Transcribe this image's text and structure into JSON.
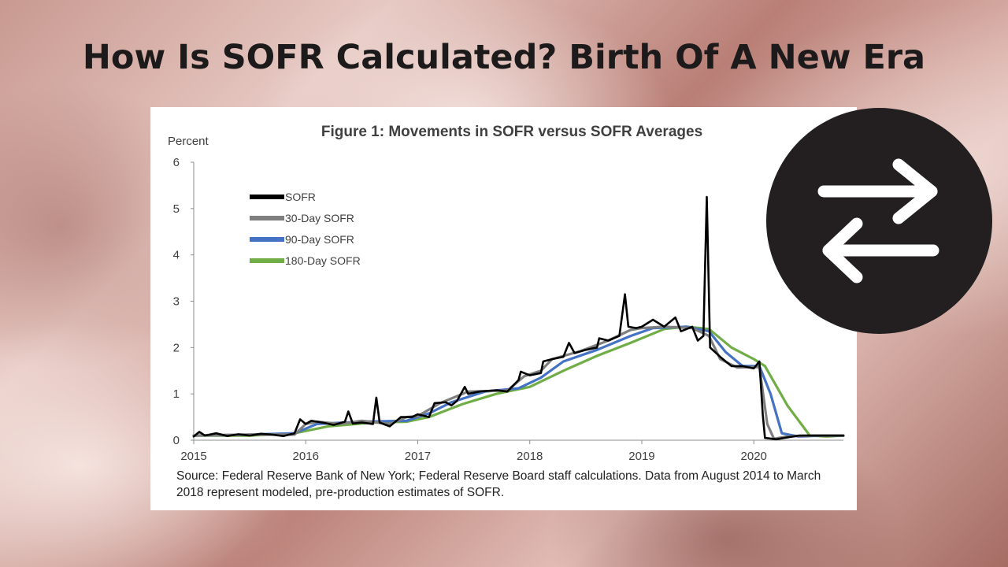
{
  "page": {
    "title": "How Is SOFR Calculated? Birth Of A New Era",
    "icon": "swap-arrows-icon",
    "colors": {
      "title": "#1d1a1b",
      "badge": "#231f20",
      "arrows": "#ffffff"
    }
  },
  "chart_data": {
    "type": "line",
    "title": "Figure 1: Movements in SOFR versus SOFR Averages",
    "ylabel": "Percent",
    "xlabel": "",
    "xlim": [
      2015,
      2020.8
    ],
    "ylim": [
      0,
      6
    ],
    "x_ticks": [
      2015,
      2016,
      2017,
      2018,
      2019,
      2020
    ],
    "y_ticks": [
      0,
      1,
      2,
      3,
      4,
      5,
      6
    ],
    "grid": false,
    "legend_position": "top-left",
    "source": "Source: Federal Reserve Bank of New York; Federal Reserve Board staff calculations. Data from August 2014 to March 2018 represent modeled, pre-production estimates of  SOFR.",
    "series": [
      {
        "name": "SOFR",
        "color": "#000000",
        "points": [
          [
            2015.0,
            0.08
          ],
          [
            2015.05,
            0.18
          ],
          [
            2015.1,
            0.1
          ],
          [
            2015.2,
            0.15
          ],
          [
            2015.3,
            0.09
          ],
          [
            2015.4,
            0.13
          ],
          [
            2015.5,
            0.1
          ],
          [
            2015.6,
            0.14
          ],
          [
            2015.7,
            0.12
          ],
          [
            2015.8,
            0.09
          ],
          [
            2015.9,
            0.15
          ],
          [
            2015.95,
            0.45
          ],
          [
            2016.0,
            0.35
          ],
          [
            2016.05,
            0.42
          ],
          [
            2016.15,
            0.38
          ],
          [
            2016.25,
            0.33
          ],
          [
            2016.35,
            0.4
          ],
          [
            2016.38,
            0.62
          ],
          [
            2016.42,
            0.36
          ],
          [
            2016.5,
            0.38
          ],
          [
            2016.6,
            0.35
          ],
          [
            2016.63,
            0.92
          ],
          [
            2016.66,
            0.38
          ],
          [
            2016.75,
            0.3
          ],
          [
            2016.85,
            0.5
          ],
          [
            2016.95,
            0.5
          ],
          [
            2017.0,
            0.56
          ],
          [
            2017.1,
            0.5
          ],
          [
            2017.15,
            0.8
          ],
          [
            2017.25,
            0.82
          ],
          [
            2017.3,
            0.75
          ],
          [
            2017.35,
            0.85
          ],
          [
            2017.42,
            1.15
          ],
          [
            2017.45,
            1.0
          ],
          [
            2017.55,
            1.05
          ],
          [
            2017.7,
            1.08
          ],
          [
            2017.8,
            1.05
          ],
          [
            2017.9,
            1.3
          ],
          [
            2017.92,
            1.48
          ],
          [
            2018.0,
            1.4
          ],
          [
            2018.1,
            1.45
          ],
          [
            2018.12,
            1.7
          ],
          [
            2018.2,
            1.75
          ],
          [
            2018.3,
            1.8
          ],
          [
            2018.35,
            2.1
          ],
          [
            2018.4,
            1.88
          ],
          [
            2018.5,
            1.95
          ],
          [
            2018.6,
            2.0
          ],
          [
            2018.62,
            2.2
          ],
          [
            2018.7,
            2.15
          ],
          [
            2018.8,
            2.25
          ],
          [
            2018.85,
            3.15
          ],
          [
            2018.88,
            2.45
          ],
          [
            2018.95,
            2.42
          ],
          [
            2019.0,
            2.45
          ],
          [
            2019.1,
            2.6
          ],
          [
            2019.2,
            2.45
          ],
          [
            2019.3,
            2.65
          ],
          [
            2019.35,
            2.35
          ],
          [
            2019.45,
            2.45
          ],
          [
            2019.5,
            2.15
          ],
          [
            2019.55,
            2.25
          ],
          [
            2019.58,
            5.25
          ],
          [
            2019.61,
            2.0
          ],
          [
            2019.7,
            1.8
          ],
          [
            2019.8,
            1.6
          ],
          [
            2019.9,
            1.6
          ],
          [
            2020.0,
            1.55
          ],
          [
            2020.05,
            1.7
          ],
          [
            2020.08,
            0.55
          ],
          [
            2020.1,
            0.05
          ],
          [
            2020.2,
            0.02
          ],
          [
            2020.4,
            0.1
          ],
          [
            2020.6,
            0.1
          ],
          [
            2020.8,
            0.1
          ]
        ]
      },
      {
        "name": "30-Day SOFR",
        "color": "#7f7f7f",
        "points": [
          [
            2015.0,
            0.1
          ],
          [
            2015.5,
            0.12
          ],
          [
            2015.9,
            0.12
          ],
          [
            2016.0,
            0.35
          ],
          [
            2016.1,
            0.4
          ],
          [
            2016.3,
            0.35
          ],
          [
            2016.5,
            0.42
          ],
          [
            2016.75,
            0.35
          ],
          [
            2016.9,
            0.5
          ],
          [
            2017.0,
            0.52
          ],
          [
            2017.2,
            0.8
          ],
          [
            2017.45,
            1.05
          ],
          [
            2017.8,
            1.07
          ],
          [
            2017.95,
            1.38
          ],
          [
            2018.1,
            1.5
          ],
          [
            2018.2,
            1.75
          ],
          [
            2018.45,
            1.92
          ],
          [
            2018.7,
            2.15
          ],
          [
            2018.9,
            2.38
          ],
          [
            2019.0,
            2.42
          ],
          [
            2019.2,
            2.45
          ],
          [
            2019.45,
            2.42
          ],
          [
            2019.6,
            2.25
          ],
          [
            2019.7,
            1.75
          ],
          [
            2019.85,
            1.57
          ],
          [
            2020.05,
            1.58
          ],
          [
            2020.12,
            0.35
          ],
          [
            2020.18,
            0.03
          ],
          [
            2020.3,
            0.08
          ],
          [
            2020.5,
            0.1
          ],
          [
            2020.8,
            0.1
          ]
        ]
      },
      {
        "name": "90-Day SOFR",
        "color": "#4472c4",
        "points": [
          [
            2015.0,
            0.1
          ],
          [
            2015.5,
            0.12
          ],
          [
            2015.9,
            0.15
          ],
          [
            2016.1,
            0.35
          ],
          [
            2016.5,
            0.4
          ],
          [
            2016.9,
            0.42
          ],
          [
            2017.1,
            0.58
          ],
          [
            2017.3,
            0.82
          ],
          [
            2017.6,
            1.05
          ],
          [
            2017.9,
            1.12
          ],
          [
            2018.1,
            1.35
          ],
          [
            2018.3,
            1.7
          ],
          [
            2018.6,
            1.95
          ],
          [
            2018.9,
            2.25
          ],
          [
            2019.1,
            2.42
          ],
          [
            2019.4,
            2.45
          ],
          [
            2019.6,
            2.35
          ],
          [
            2019.75,
            1.9
          ],
          [
            2019.9,
            1.6
          ],
          [
            2020.05,
            1.6
          ],
          [
            2020.15,
            1.0
          ],
          [
            2020.25,
            0.15
          ],
          [
            2020.4,
            0.08
          ],
          [
            2020.6,
            0.1
          ],
          [
            2020.8,
            0.1
          ]
        ]
      },
      {
        "name": "180-Day SOFR",
        "color": "#70ad47",
        "points": [
          [
            2015.0,
            0.1
          ],
          [
            2015.5,
            0.1
          ],
          [
            2015.9,
            0.15
          ],
          [
            2016.2,
            0.3
          ],
          [
            2016.6,
            0.38
          ],
          [
            2016.9,
            0.4
          ],
          [
            2017.1,
            0.5
          ],
          [
            2017.4,
            0.78
          ],
          [
            2017.7,
            1.0
          ],
          [
            2018.0,
            1.15
          ],
          [
            2018.3,
            1.5
          ],
          [
            2018.6,
            1.82
          ],
          [
            2018.9,
            2.1
          ],
          [
            2019.2,
            2.4
          ],
          [
            2019.4,
            2.45
          ],
          [
            2019.6,
            2.4
          ],
          [
            2019.8,
            2.0
          ],
          [
            2020.0,
            1.75
          ],
          [
            2020.1,
            1.6
          ],
          [
            2020.3,
            0.75
          ],
          [
            2020.5,
            0.1
          ],
          [
            2020.65,
            0.08
          ],
          [
            2020.8,
            0.1
          ]
        ]
      }
    ]
  }
}
